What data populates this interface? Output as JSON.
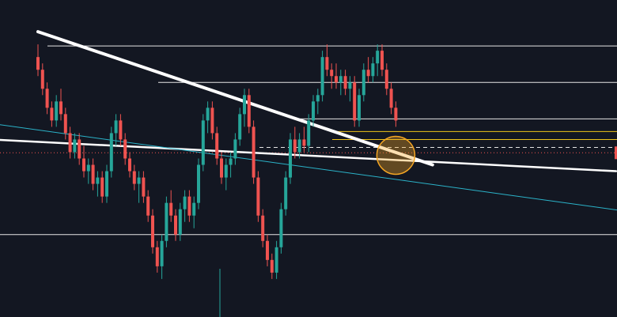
{
  "chart_data": {
    "type": "candlestick",
    "background": "#131722",
    "colors": {
      "up": "#26a69a",
      "down": "#ef5350",
      "wick": "#b2b5be",
      "horizontal_level": "#e6e6e6",
      "zone_line": "#f0c419",
      "trendline": "#ffffff",
      "channel_line": "#2bb3c9",
      "highlight_circle": "#f5a623",
      "price_marker": "#ef5350"
    },
    "y_domain": [
      0,
      100
    ],
    "time_domain": [
      0,
      180
    ],
    "candles": [
      {
        "t": 0,
        "o": 82,
        "h": 86,
        "l": 76,
        "c": 78
      },
      {
        "t": 1,
        "o": 78,
        "h": 80,
        "l": 70,
        "c": 72
      },
      {
        "t": 2,
        "o": 72,
        "h": 74,
        "l": 64,
        "c": 66
      },
      {
        "t": 3,
        "o": 66,
        "h": 68,
        "l": 60,
        "c": 62
      },
      {
        "t": 4,
        "o": 62,
        "h": 70,
        "l": 60,
        "c": 68
      },
      {
        "t": 5,
        "o": 68,
        "h": 72,
        "l": 62,
        "c": 64
      },
      {
        "t": 6,
        "o": 64,
        "h": 66,
        "l": 56,
        "c": 58
      },
      {
        "t": 7,
        "o": 58,
        "h": 60,
        "l": 50,
        "c": 52
      },
      {
        "t": 8,
        "o": 52,
        "h": 58,
        "l": 50,
        "c": 56
      },
      {
        "t": 9,
        "o": 56,
        "h": 58,
        "l": 48,
        "c": 50
      },
      {
        "t": 10,
        "o": 50,
        "h": 54,
        "l": 44,
        "c": 46
      },
      {
        "t": 11,
        "o": 46,
        "h": 50,
        "l": 42,
        "c": 48
      },
      {
        "t": 12,
        "o": 48,
        "h": 50,
        "l": 40,
        "c": 42
      },
      {
        "t": 13,
        "o": 42,
        "h": 46,
        "l": 38,
        "c": 44
      },
      {
        "t": 14,
        "o": 44,
        "h": 46,
        "l": 36,
        "c": 38
      },
      {
        "t": 15,
        "o": 38,
        "h": 48,
        "l": 36,
        "c": 46
      },
      {
        "t": 16,
        "o": 46,
        "h": 60,
        "l": 44,
        "c": 58
      },
      {
        "t": 17,
        "o": 58,
        "h": 64,
        "l": 54,
        "c": 62
      },
      {
        "t": 18,
        "o": 62,
        "h": 64,
        "l": 54,
        "c": 56
      },
      {
        "t": 19,
        "o": 56,
        "h": 58,
        "l": 48,
        "c": 50
      },
      {
        "t": 20,
        "o": 50,
        "h": 52,
        "l": 44,
        "c": 46
      },
      {
        "t": 21,
        "o": 46,
        "h": 48,
        "l": 40,
        "c": 42
      },
      {
        "t": 22,
        "o": 42,
        "h": 46,
        "l": 36,
        "c": 44
      },
      {
        "t": 23,
        "o": 44,
        "h": 46,
        "l": 36,
        "c": 38
      },
      {
        "t": 24,
        "o": 38,
        "h": 40,
        "l": 30,
        "c": 32
      },
      {
        "t": 25,
        "o": 32,
        "h": 34,
        "l": 20,
        "c": 22
      },
      {
        "t": 26,
        "o": 22,
        "h": 24,
        "l": 14,
        "c": 16
      },
      {
        "t": 27,
        "o": 16,
        "h": 26,
        "l": 12,
        "c": 24
      },
      {
        "t": 28,
        "o": 24,
        "h": 38,
        "l": 22,
        "c": 36
      },
      {
        "t": 29,
        "o": 36,
        "h": 40,
        "l": 30,
        "c": 32
      },
      {
        "t": 30,
        "o": 32,
        "h": 34,
        "l": 24,
        "c": 26
      },
      {
        "t": 31,
        "o": 26,
        "h": 36,
        "l": 24,
        "c": 34
      },
      {
        "t": 32,
        "o": 34,
        "h": 40,
        "l": 30,
        "c": 38
      },
      {
        "t": 33,
        "o": 38,
        "h": 40,
        "l": 30,
        "c": 32
      },
      {
        "t": 34,
        "o": 32,
        "h": 38,
        "l": 28,
        "c": 36
      },
      {
        "t": 35,
        "o": 36,
        "h": 50,
        "l": 34,
        "c": 48
      },
      {
        "t": 36,
        "o": 48,
        "h": 64,
        "l": 46,
        "c": 62
      },
      {
        "t": 37,
        "o": 62,
        "h": 68,
        "l": 58,
        "c": 66
      },
      {
        "t": 38,
        "o": 66,
        "h": 68,
        "l": 56,
        "c": 58
      },
      {
        "t": 39,
        "o": 58,
        "h": 60,
        "l": 48,
        "c": 50
      },
      {
        "t": 40,
        "o": 50,
        "h": 52,
        "l": 42,
        "c": 44
      },
      {
        "t": 41,
        "o": 44,
        "h": 50,
        "l": 40,
        "c": 48
      },
      {
        "t": 42,
        "o": 48,
        "h": 52,
        "l": 44,
        "c": 50
      },
      {
        "t": 43,
        "o": 50,
        "h": 58,
        "l": 48,
        "c": 56
      },
      {
        "t": 44,
        "o": 56,
        "h": 66,
        "l": 54,
        "c": 64
      },
      {
        "t": 45,
        "o": 64,
        "h": 72,
        "l": 60,
        "c": 70
      },
      {
        "t": 46,
        "o": 70,
        "h": 72,
        "l": 58,
        "c": 60
      },
      {
        "t": 47,
        "o": 60,
        "h": 62,
        "l": 42,
        "c": 44
      },
      {
        "t": 48,
        "o": 44,
        "h": 46,
        "l": 30,
        "c": 32
      },
      {
        "t": 49,
        "o": 32,
        "h": 34,
        "l": 22,
        "c": 24
      },
      {
        "t": 50,
        "o": 24,
        "h": 26,
        "l": 16,
        "c": 18
      },
      {
        "t": 51,
        "o": 18,
        "h": 20,
        "l": 12,
        "c": 14
      },
      {
        "t": 52,
        "o": 14,
        "h": 24,
        "l": 12,
        "c": 22
      },
      {
        "t": 53,
        "o": 22,
        "h": 36,
        "l": 20,
        "c": 34
      },
      {
        "t": 54,
        "o": 34,
        "h": 46,
        "l": 32,
        "c": 44
      },
      {
        "t": 55,
        "o": 44,
        "h": 58,
        "l": 42,
        "c": 56
      },
      {
        "t": 56,
        "o": 56,
        "h": 60,
        "l": 50,
        "c": 52
      },
      {
        "t": 57,
        "o": 52,
        "h": 58,
        "l": 50,
        "c": 56
      },
      {
        "t": 58,
        "o": 56,
        "h": 60,
        "l": 52,
        "c": 54
      },
      {
        "t": 59,
        "o": 54,
        "h": 64,
        "l": 52,
        "c": 62
      },
      {
        "t": 60,
        "o": 62,
        "h": 70,
        "l": 60,
        "c": 68
      },
      {
        "t": 61,
        "o": 68,
        "h": 72,
        "l": 64,
        "c": 70
      },
      {
        "t": 62,
        "o": 70,
        "h": 84,
        "l": 68,
        "c": 82
      },
      {
        "t": 63,
        "o": 82,
        "h": 86,
        "l": 76,
        "c": 78
      },
      {
        "t": 64,
        "o": 78,
        "h": 80,
        "l": 72,
        "c": 76
      },
      {
        "t": 65,
        "o": 76,
        "h": 80,
        "l": 72,
        "c": 74
      },
      {
        "t": 66,
        "o": 74,
        "h": 78,
        "l": 70,
        "c": 76
      },
      {
        "t": 67,
        "o": 76,
        "h": 78,
        "l": 70,
        "c": 72
      },
      {
        "t": 68,
        "o": 72,
        "h": 76,
        "l": 68,
        "c": 74
      },
      {
        "t": 69,
        "o": 74,
        "h": 76,
        "l": 60,
        "c": 62
      },
      {
        "t": 70,
        "o": 62,
        "h": 72,
        "l": 60,
        "c": 70
      },
      {
        "t": 71,
        "o": 70,
        "h": 80,
        "l": 68,
        "c": 78
      },
      {
        "t": 72,
        "o": 78,
        "h": 82,
        "l": 74,
        "c": 76
      },
      {
        "t": 73,
        "o": 76,
        "h": 82,
        "l": 74,
        "c": 80
      },
      {
        "t": 74,
        "o": 80,
        "h": 86,
        "l": 76,
        "c": 84
      },
      {
        "t": 75,
        "o": 84,
        "h": 86,
        "l": 76,
        "c": 78
      },
      {
        "t": 76,
        "o": 78,
        "h": 80,
        "l": 70,
        "c": 72
      },
      {
        "t": 77,
        "o": 72,
        "h": 74,
        "l": 64,
        "c": 66
      },
      {
        "t": 78,
        "o": 66,
        "h": 68,
        "l": 60,
        "c": 62
      }
    ],
    "horizontal_levels": [
      85.5,
      74,
      62.5,
      26
    ],
    "zone_lines": [
      58.5,
      56
    ],
    "dashed_level": 53.5,
    "dotted_price_level": 51.8,
    "trendlines": [
      {
        "name": "descending",
        "from": [
          0,
          90
        ],
        "to": [
          86,
          48
        ]
      },
      {
        "name": "flat",
        "from": [
          -10,
          56
        ],
        "to": [
          126,
          46
        ]
      },
      {
        "name": "channel",
        "from": [
          -10,
          61
        ],
        "to": [
          180,
          23
        ]
      }
    ],
    "highlight": {
      "t": 78,
      "y": 51
    }
  }
}
